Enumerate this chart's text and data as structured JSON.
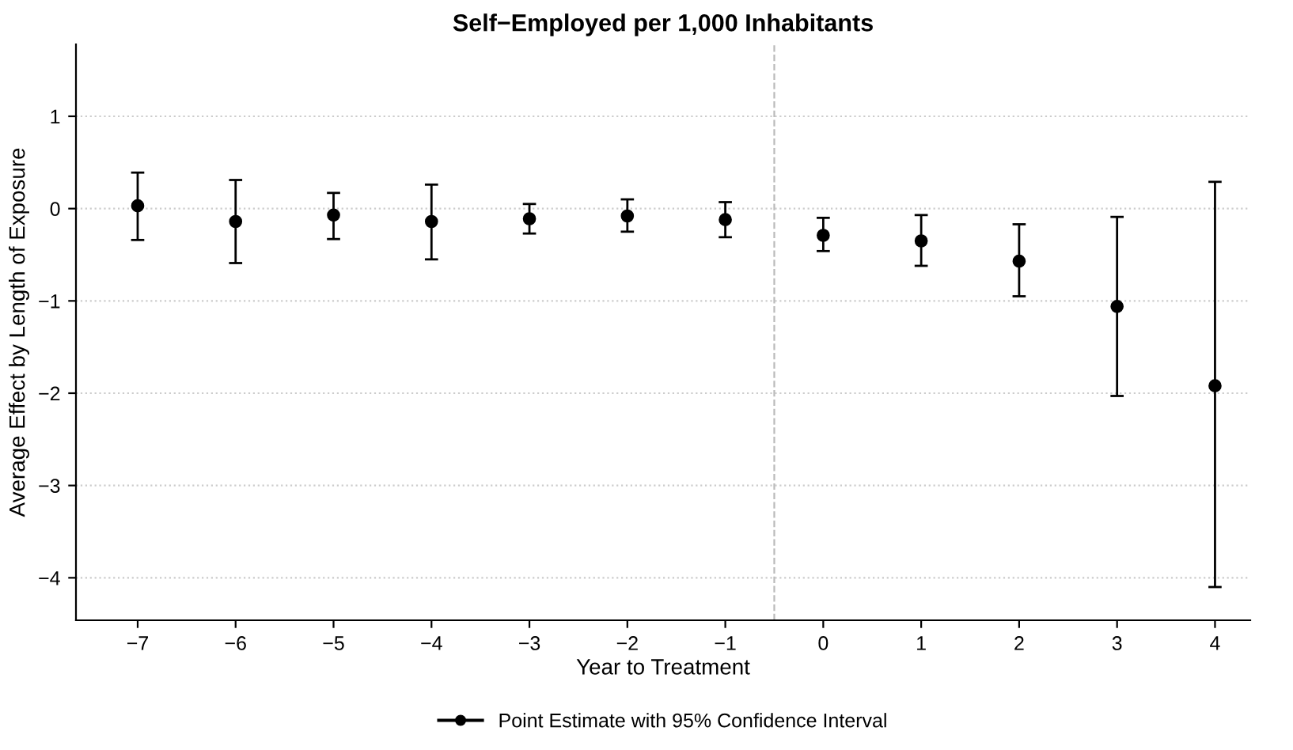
{
  "chart_data": {
    "type": "scatter",
    "title": "Self−Employed per 1,000 Inhabitants",
    "xlabel": "Year to Treatment",
    "ylabel": "Average Effect by Length of Exposure",
    "x": [
      -7,
      -6,
      -5,
      -4,
      -3,
      -2,
      -1,
      0,
      1,
      2,
      3,
      4
    ],
    "series": [
      {
        "name": "Point Estimate with 95% Confidence Interval",
        "color": "#000000",
        "values": [
          0.03,
          -0.14,
          -0.07,
          -0.14,
          -0.11,
          -0.08,
          -0.12,
          -0.29,
          -0.35,
          -0.57,
          -1.06,
          -1.92
        ],
        "errors": [
          [
            -0.34,
            0.39
          ],
          [
            -0.59,
            0.31
          ],
          [
            -0.33,
            0.17
          ],
          [
            -0.55,
            0.26
          ],
          [
            -0.27,
            0.05
          ],
          [
            -0.25,
            0.1
          ],
          [
            -0.31,
            0.07
          ],
          [
            -0.46,
            -0.1
          ],
          [
            -0.62,
            -0.07
          ],
          [
            -0.95,
            -0.17
          ],
          [
            -2.03,
            -0.09
          ],
          [
            -4.1,
            0.29
          ]
        ]
      }
    ],
    "xlim": [
      -7.63,
      4.36
    ],
    "ylim": [
      -4.46,
      1.78
    ],
    "xticks": [
      {
        "value": -7,
        "label": "−7"
      },
      {
        "value": -6,
        "label": "−6"
      },
      {
        "value": -5,
        "label": "−5"
      },
      {
        "value": -4,
        "label": "−4"
      },
      {
        "value": -3,
        "label": "−3"
      },
      {
        "value": -2,
        "label": "−2"
      },
      {
        "value": -1,
        "label": "−1"
      },
      0,
      1,
      2,
      3,
      4
    ],
    "yticks": [
      {
        "value": -4,
        "label": "−4"
      },
      {
        "value": -3,
        "label": "−3"
      },
      {
        "value": -2,
        "label": "−2"
      },
      {
        "value": -1,
        "label": "−1"
      },
      0,
      1
    ],
    "ref_lines": [
      {
        "axis": "x",
        "value": -0.5,
        "color": "#bbbbbb",
        "line_style": "dashed"
      }
    ],
    "grid": "y",
    "legend": "bottom",
    "marker": "circle"
  }
}
